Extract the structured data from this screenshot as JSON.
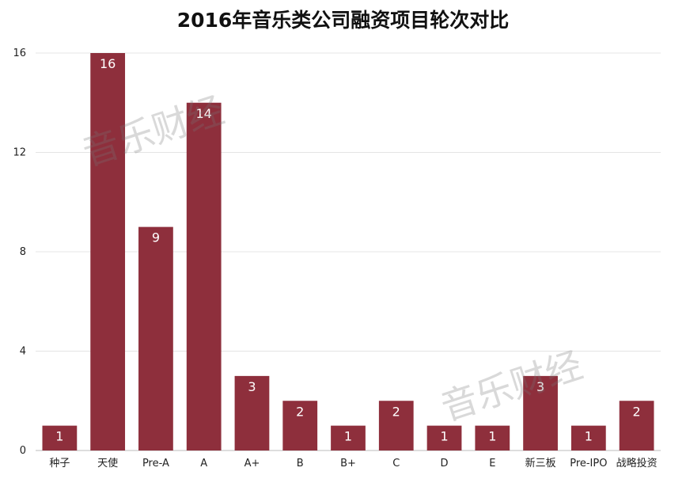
{
  "chart_data": {
    "type": "bar",
    "title": "2016年音乐类公司融资项目轮次对比",
    "xlabel": "",
    "ylabel": "",
    "categories": [
      "种子",
      "天使",
      "Pre-A",
      "A",
      "A+",
      "B",
      "B+",
      "C",
      "D",
      "E",
      "新三板",
      "Pre-IPO",
      "战略投资"
    ],
    "values": [
      1,
      16,
      9,
      14,
      3,
      2,
      1,
      2,
      1,
      1,
      3,
      1,
      2
    ],
    "data_labels": [
      "1",
      "16",
      "9",
      "14",
      "3",
      "2",
      "1",
      "2",
      "1",
      "1",
      "3",
      "1",
      "2"
    ],
    "ylim": [
      0,
      16
    ],
    "yticks": [
      0,
      4,
      8,
      12,
      16
    ],
    "ytick_labels": [
      "0",
      "4",
      "8",
      "12",
      "16"
    ],
    "grid": true,
    "bar_color": "#8e2f3c",
    "label_color": "#ffffff"
  },
  "watermark": {
    "text": "音乐财经"
  }
}
